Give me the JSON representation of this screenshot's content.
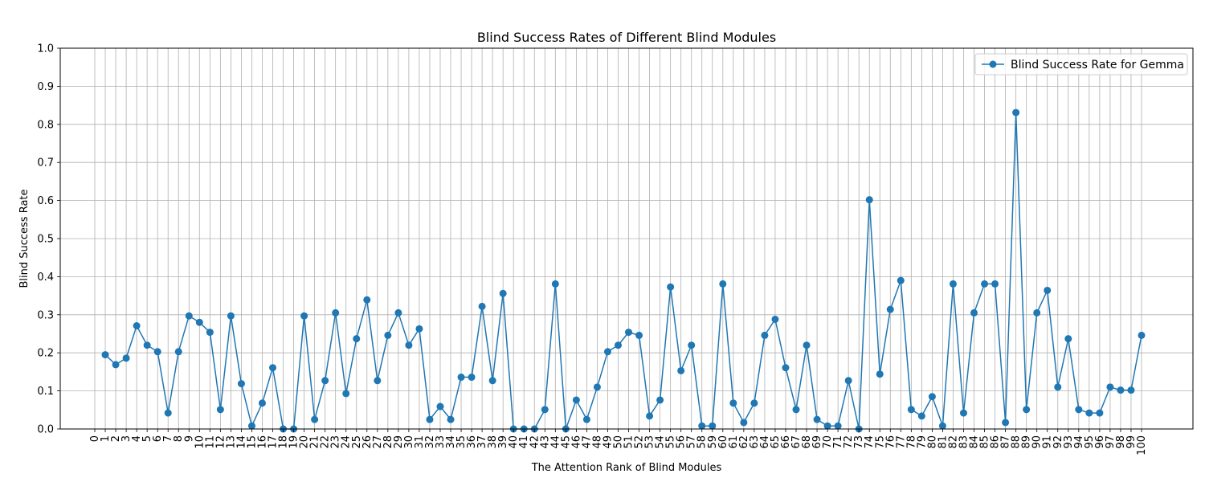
{
  "chart_data": {
    "type": "line",
    "title": "Blind Success Rates of Different Blind Modules",
    "xlabel": "The Attention Rank of Blind Modules",
    "ylabel": "Blind Success Rate",
    "xlim": [
      0,
      100
    ],
    "ylim": [
      0.0,
      1.0
    ],
    "xticks": [
      0,
      1,
      2,
      3,
      4,
      5,
      6,
      7,
      8,
      9,
      10,
      11,
      12,
      13,
      14,
      15,
      16,
      17,
      18,
      19,
      20,
      21,
      22,
      23,
      24,
      25,
      26,
      27,
      28,
      29,
      30,
      31,
      32,
      33,
      34,
      35,
      36,
      37,
      38,
      39,
      40,
      41,
      42,
      43,
      44,
      45,
      46,
      47,
      48,
      49,
      50,
      51,
      52,
      53,
      54,
      55,
      56,
      57,
      58,
      59,
      60,
      61,
      62,
      63,
      64,
      65,
      66,
      67,
      68,
      69,
      70,
      71,
      72,
      73,
      74,
      75,
      76,
      77,
      78,
      79,
      80,
      81,
      82,
      83,
      84,
      85,
      86,
      87,
      88,
      89,
      90,
      91,
      92,
      93,
      94,
      95,
      96,
      97,
      98,
      99,
      100
    ],
    "yticks": [
      0.0,
      0.1,
      0.2,
      0.3,
      0.4,
      0.5,
      0.6,
      0.7,
      0.8,
      0.9,
      1.0
    ],
    "grid": true,
    "legend_position": "top-right",
    "series": [
      {
        "name": "Blind Success Rate for Gemma",
        "color": "#1f77b4",
        "x": [
          1,
          2,
          3,
          4,
          5,
          6,
          7,
          8,
          9,
          10,
          11,
          12,
          13,
          14,
          15,
          16,
          17,
          18,
          19,
          20,
          21,
          22,
          23,
          24,
          25,
          26,
          27,
          28,
          29,
          30,
          31,
          32,
          33,
          34,
          35,
          36,
          37,
          38,
          39,
          40,
          41,
          42,
          43,
          44,
          45,
          46,
          47,
          48,
          49,
          50,
          51,
          52,
          53,
          54,
          55,
          56,
          57,
          58,
          59,
          60,
          61,
          62,
          63,
          64,
          65,
          66,
          67,
          68,
          69,
          70,
          71,
          72,
          73,
          74,
          75,
          76,
          77,
          78,
          79,
          80,
          81,
          82,
          83,
          84,
          85,
          86,
          87,
          88,
          89,
          90,
          91,
          92,
          93,
          94,
          95,
          96,
          97,
          98,
          99,
          100
        ],
        "values": [
          0.195,
          0.169,
          0.186,
          0.271,
          0.22,
          0.203,
          0.042,
          0.203,
          0.297,
          0.28,
          0.254,
          0.051,
          0.297,
          0.119,
          0.008,
          0.068,
          0.161,
          0.0,
          0.0,
          0.297,
          0.025,
          0.127,
          0.305,
          0.093,
          0.237,
          0.339,
          0.127,
          0.246,
          0.305,
          0.22,
          0.263,
          0.025,
          0.059,
          0.025,
          0.136,
          0.136,
          0.322,
          0.127,
          0.356,
          0.0,
          0.0,
          0.0,
          0.051,
          0.381,
          0.0,
          0.076,
          0.025,
          0.11,
          0.203,
          0.22,
          0.254,
          0.246,
          0.034,
          0.076,
          0.373,
          0.153,
          0.22,
          0.008,
          0.008,
          0.381,
          0.068,
          0.017,
          0.068,
          0.246,
          0.288,
          0.161,
          0.051,
          0.22,
          0.025,
          0.008,
          0.008,
          0.127,
          0.0,
          0.602,
          0.144,
          0.314,
          0.39,
          0.051,
          0.034,
          0.085,
          0.008,
          0.381,
          0.042,
          0.305,
          0.381,
          0.381,
          0.017,
          0.831,
          0.051,
          0.305,
          0.364,
          0.11,
          0.237,
          0.051,
          0.042,
          0.042,
          0.11,
          0.102,
          0.102,
          0.246
        ]
      }
    ]
  }
}
